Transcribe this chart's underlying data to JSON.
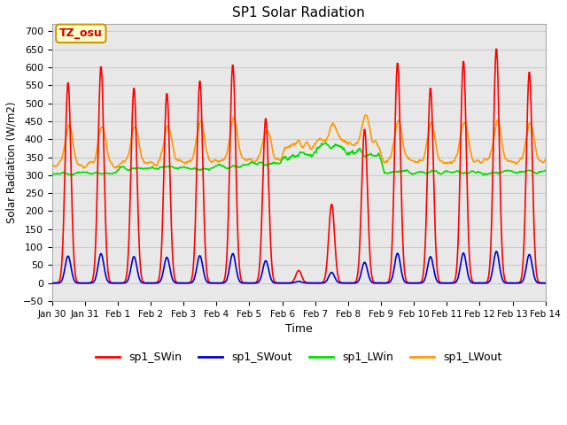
{
  "title": "SP1 Solar Radiation",
  "xlabel": "Time",
  "ylabel": "Solar Radiation (W/m2)",
  "ylim": [
    -50,
    720
  ],
  "annotation_text": "TZ_osu",
  "annotation_color": "#cc0000",
  "annotation_bg": "#ffffcc",
  "annotation_border": "#cc9900",
  "series_colors": {
    "sp1_SWin": "#ff0000",
    "sp1_SWout": "#0000cc",
    "sp1_LWin": "#00dd00",
    "sp1_LWout": "#ff9900"
  },
  "line_widths": {
    "sp1_SWin": 1.2,
    "sp1_SWout": 1.2,
    "sp1_LWin": 1.2,
    "sp1_LWout": 1.2
  },
  "legend_labels": [
    "sp1_SWin",
    "sp1_SWout",
    "sp1_LWin",
    "sp1_LWout"
  ],
  "xtick_labels": [
    "Jan 30",
    "Jan 31",
    "Feb 1",
    "Feb 2",
    "Feb 3",
    "Feb 4",
    "Feb 5",
    "Feb 6",
    "Feb 7",
    "Feb 8",
    "Feb 9",
    "Feb 10",
    "Feb 11",
    "Feb 12",
    "Feb 13",
    "Feb 14"
  ],
  "grid_color": "#cccccc",
  "fig_bg_color": "#ffffff",
  "plot_bg_color": "#e8e8e8"
}
